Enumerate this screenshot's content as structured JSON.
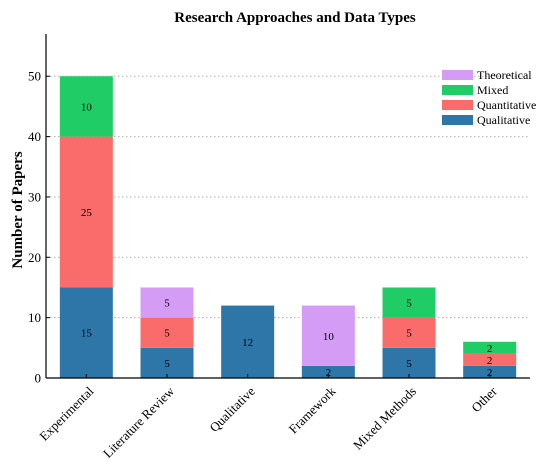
{
  "chart_data": {
    "type": "bar",
    "stacked": true,
    "title": "Research Approaches and Data Types",
    "xlabel": "",
    "ylabel": "Number of Papers",
    "ylim": [
      0,
      57
    ],
    "yticks": [
      0,
      10,
      20,
      30,
      40,
      50
    ],
    "grid": "horizontal-dotted",
    "legend_position": "top-right",
    "categories": [
      "Experimental",
      "Literature Review",
      "Qualitative",
      "Framework",
      "Mixed Methods",
      "Other"
    ],
    "series": [
      {
        "name": "Qualitative",
        "color": "#2e75a8",
        "values": [
          15,
          5,
          12,
          2,
          5,
          2
        ],
        "labels": [
          "15",
          "5",
          "12",
          "2",
          "5",
          "2"
        ]
      },
      {
        "name": "Quantitative",
        "color": "#fa6b6b",
        "values": [
          25,
          5,
          0,
          0,
          5,
          2
        ],
        "labels": [
          "25",
          "5",
          "",
          "",
          "5",
          "2"
        ]
      },
      {
        "name": "Mixed",
        "color": "#1fcc66",
        "values": [
          10,
          0,
          0,
          0,
          5,
          2
        ],
        "labels": [
          "10",
          "",
          "",
          "",
          "5",
          "2"
        ]
      },
      {
        "name": "Theoretical",
        "color": "#d49cf5",
        "values": [
          0,
          5,
          0,
          10,
          0,
          0
        ],
        "labels": [
          "",
          "5",
          "",
          "10",
          "",
          ""
        ]
      }
    ],
    "legend_order": [
      "Theoretical",
      "Mixed",
      "Quantitative",
      "Qualitative"
    ]
  }
}
